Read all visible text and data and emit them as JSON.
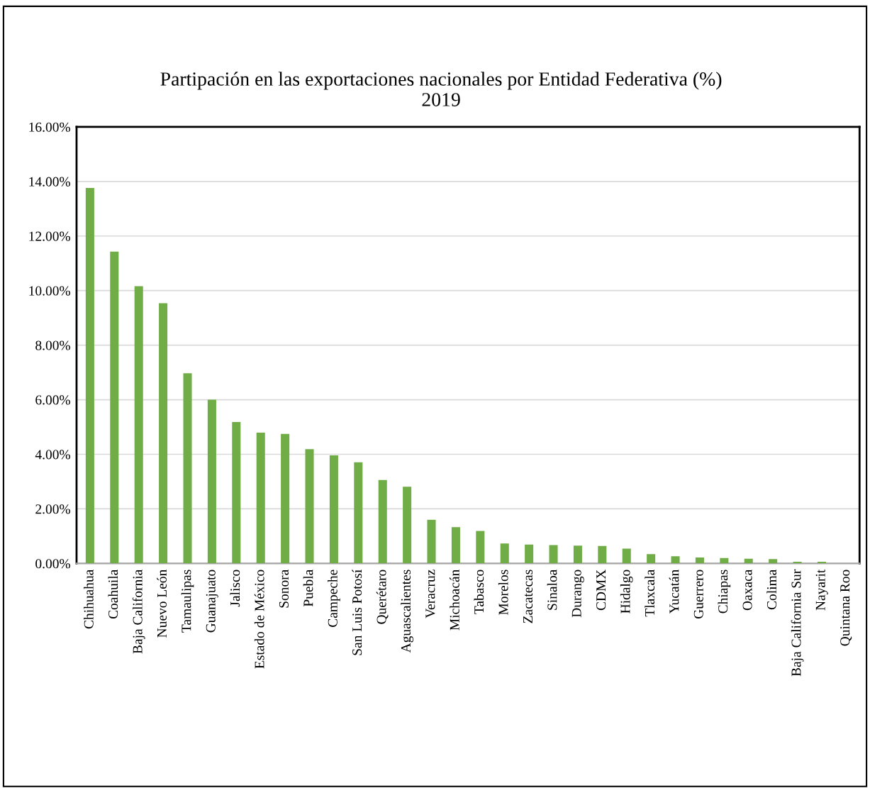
{
  "chart_data": {
    "type": "bar",
    "title": "Partipación en las exportaciones nacionales por Entidad Federativa (%)\n2019",
    "categories": [
      "Chihuahua",
      "Coahuila",
      "Baja California",
      "Nuevo León",
      "Tamaulipas",
      "Guanajuato",
      "Jalisco",
      "Estado de México",
      "Sonora",
      "Puebla",
      "Campeche",
      "San Luis Potosí",
      "Querétaro",
      "Aguascalientes",
      "Veracruz",
      "Michoacán",
      "Tabasco",
      "Morelos",
      "Zacatecas",
      "Sinaloa",
      "Durango",
      "CDMX",
      "Hidalgo",
      "Tlaxcala",
      "Yucatán",
      "Guerrero",
      "Chiapas",
      "Oaxaca",
      "Colima",
      "Baja California Sur",
      "Nayarit",
      "Quintana Roo"
    ],
    "values": [
      13.76,
      11.43,
      10.16,
      9.54,
      6.97,
      6.0,
      5.18,
      4.79,
      4.75,
      4.19,
      3.96,
      3.71,
      3.06,
      2.81,
      1.6,
      1.33,
      1.19,
      0.73,
      0.69,
      0.67,
      0.65,
      0.64,
      0.54,
      0.34,
      0.26,
      0.22,
      0.2,
      0.17,
      0.16,
      0.06,
      0.06,
      null
    ],
    "color": "#70ad47",
    "ylim": [
      0,
      16
    ],
    "yticks": [
      {
        "value": 0,
        "label": "0.00%"
      },
      {
        "value": 2,
        "label": "2.00%"
      },
      {
        "value": 4,
        "label": "4.00%"
      },
      {
        "value": 6,
        "label": "6.00%"
      },
      {
        "value": 8,
        "label": "8.00%"
      },
      {
        "value": 10,
        "label": "10.00%"
      },
      {
        "value": 12,
        "label": "12.00%"
      },
      {
        "value": 14,
        "label": "14.00%"
      },
      {
        "value": 16,
        "label": "16.00%"
      }
    ],
    "grid": "y"
  }
}
